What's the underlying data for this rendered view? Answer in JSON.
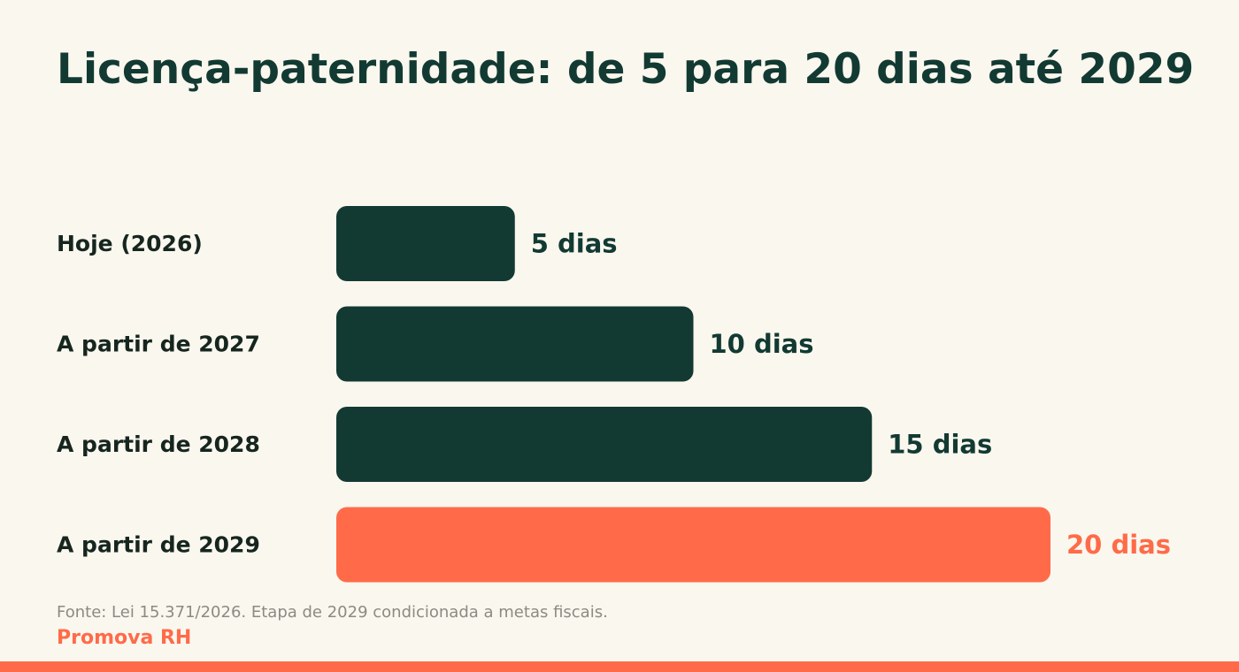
{
  "chart_data": {
    "type": "bar",
    "orientation": "horizontal",
    "title": "Licença-paternidade: de 5 para 20 dias até 2029",
    "categories": [
      "Hoje (2026)",
      "A partir de 2027",
      "A partir de 2028",
      "A partir de 2029"
    ],
    "values": [
      5,
      10,
      15,
      20
    ],
    "value_labels": [
      "5 dias",
      "10 dias",
      "15 dias",
      "20 dias"
    ],
    "highlight_index": 3,
    "colors": {
      "bar": "#123a32",
      "highlight": "#ff6b48",
      "value_label": "#123a32",
      "highlight_label": "#ff6b48"
    },
    "xlim": [
      0,
      20
    ],
    "grid": false
  },
  "footer": {
    "source": "Fonte: Lei 15.371/2026. Etapa de 2029 condicionada a metas fiscais.",
    "brand": "Promova RH"
  }
}
